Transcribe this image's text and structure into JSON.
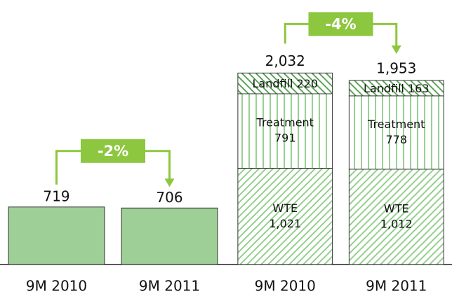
{
  "chart_data": [
    {
      "type": "bar",
      "categories": [
        "9M 2010",
        "9M 2011"
      ],
      "values": [
        719,
        706
      ],
      "color": "#9dcf96",
      "ylim": [
        0,
        2650
      ],
      "annotation": "-2%"
    },
    {
      "type": "stacked_bar",
      "categories": [
        "9M 2010",
        "9M 2011"
      ],
      "ylim": [
        0,
        2250
      ],
      "annotation": "-4%",
      "series": [
        {
          "name": "WTE",
          "color": "#8ccc84",
          "pattern": "diagonal",
          "values": [
            1021,
            1012
          ],
          "value_labels": [
            "1,021",
            "1,012"
          ]
        },
        {
          "name": "Treatment",
          "color": "#7fc478",
          "pattern": "vertical",
          "values": [
            791,
            778
          ]
        },
        {
          "name": "Landfill",
          "color": "#4f9e4a",
          "pattern": "diagonal-reverse",
          "values": [
            220,
            163
          ]
        }
      ],
      "totals": [
        2032,
        1953
      ],
      "total_labels": [
        "2,032",
        "1,953"
      ]
    }
  ]
}
